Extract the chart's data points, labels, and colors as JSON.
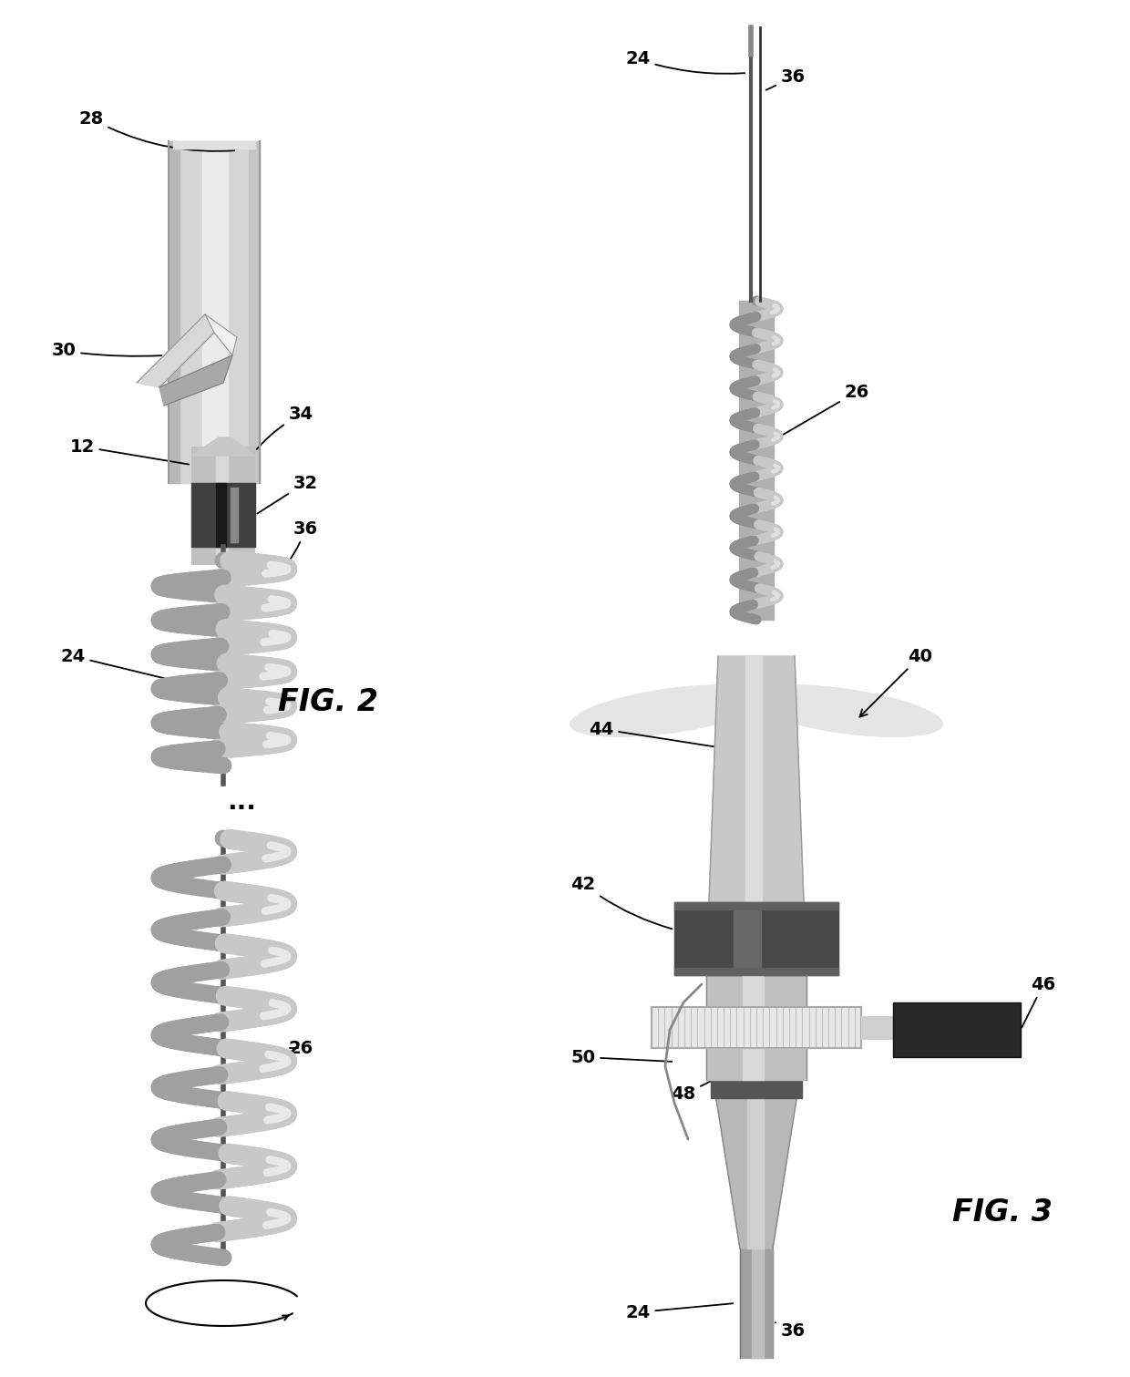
{
  "bg_color": "#ffffff",
  "fig_width": 12.4,
  "fig_height": 15.11,
  "label_fontsize": 14,
  "fig_label_fontsize": 24
}
